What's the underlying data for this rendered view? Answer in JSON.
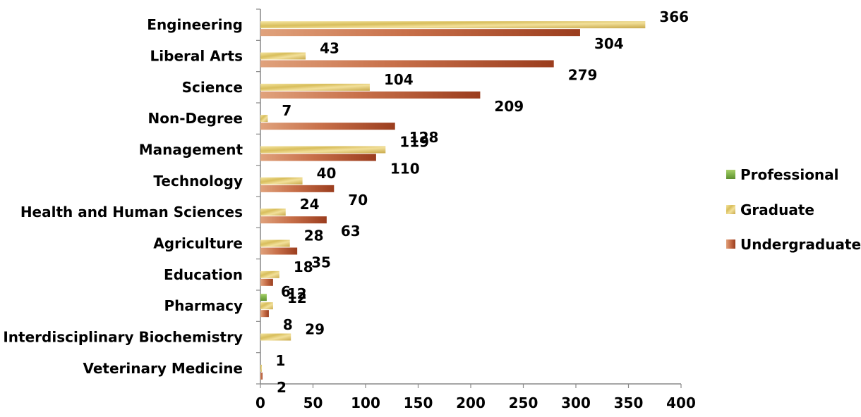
{
  "chart_data": {
    "type": "bar",
    "orientation": "horizontal",
    "categories": [
      "Engineering",
      "Liberal Arts",
      "Science",
      "Non-Degree",
      "Management",
      "Technology",
      "Health and Human Sciences",
      "Agriculture",
      "Education",
      "Pharmacy",
      "Interdisciplinary Biochemistry",
      "Veterinary Medicine"
    ],
    "series": [
      {
        "name": "Professional",
        "color": "#7fb24a",
        "values": [
          null,
          null,
          null,
          null,
          null,
          null,
          null,
          null,
          null,
          6,
          null,
          null
        ]
      },
      {
        "name": "Graduate",
        "color": "#d8be5c",
        "values": [
          366,
          43,
          104,
          7,
          119,
          40,
          24,
          28,
          18,
          12,
          29,
          1
        ]
      },
      {
        "name": "Undergraduate",
        "color": "#b5512e",
        "values": [
          304,
          279,
          209,
          128,
          110,
          70,
          63,
          35,
          12,
          8,
          null,
          2
        ]
      }
    ],
    "xlim": [
      0,
      400
    ],
    "xticks": [
      0,
      50,
      100,
      150,
      200,
      250,
      300,
      350,
      400
    ],
    "grid": false,
    "legend": "right",
    "title": "",
    "xlabel": "",
    "ylabel": ""
  }
}
